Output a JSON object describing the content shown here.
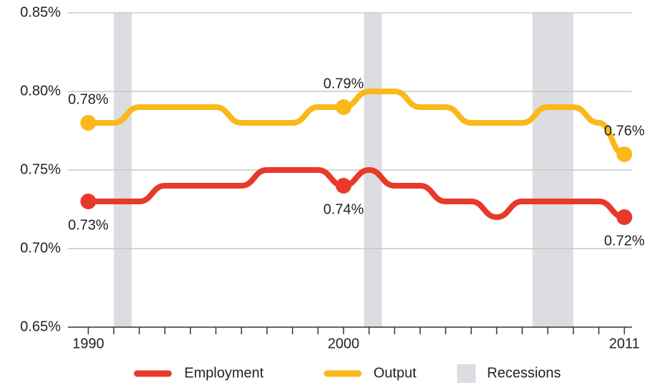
{
  "chart_data": {
    "type": "line",
    "x": [
      1990,
      1991,
      1992,
      1993,
      1994,
      1995,
      1996,
      1997,
      1998,
      1999,
      2000,
      2001,
      2002,
      2003,
      2004,
      2005,
      2006,
      2007,
      2008,
      2009,
      2010,
      2011
    ],
    "series": [
      {
        "name": "Employment",
        "color": "#e8392a",
        "values": [
          0.73,
          0.73,
          0.73,
          0.74,
          0.74,
          0.74,
          0.74,
          0.75,
          0.75,
          0.75,
          0.74,
          0.75,
          0.74,
          0.74,
          0.73,
          0.73,
          0.72,
          0.73,
          0.73,
          0.73,
          0.73,
          0.72
        ],
        "value_labels": [
          "0.73%",
          null,
          null,
          null,
          null,
          null,
          null,
          null,
          null,
          null,
          "0.74%",
          null,
          null,
          null,
          null,
          null,
          null,
          null,
          null,
          null,
          null,
          "0.72%"
        ]
      },
      {
        "name": "Output",
        "color": "#fbb81b",
        "values": [
          0.78,
          0.78,
          0.79,
          0.79,
          0.79,
          0.79,
          0.78,
          0.78,
          0.78,
          0.79,
          0.79,
          0.8,
          0.8,
          0.79,
          0.79,
          0.78,
          0.78,
          0.78,
          0.79,
          0.79,
          0.78,
          0.76
        ],
        "value_labels": [
          "0.78%",
          null,
          null,
          null,
          null,
          null,
          null,
          null,
          null,
          null,
          "0.79%",
          null,
          null,
          null,
          null,
          null,
          null,
          null,
          null,
          null,
          null,
          "0.76%"
        ]
      }
    ],
    "recessions": {
      "name": "Recessions",
      "color": "#dcdde0",
      "spans": [
        [
          1991.0,
          1991.7
        ],
        [
          2000.8,
          2001.5
        ],
        [
          2007.4,
          2009.0
        ]
      ]
    },
    "xlim": [
      1989.2,
      2011.3
    ],
    "xticks": [
      1990,
      2000,
      2011
    ],
    "xminor": [
      1991,
      1992,
      1993,
      1994,
      1995,
      1996,
      1997,
      1998,
      1999,
      2001,
      2002,
      2003,
      2004,
      2005,
      2006,
      2007,
      2008,
      2009,
      2010
    ],
    "ylim": [
      0.65,
      0.85
    ],
    "yticks": [
      {
        "value": 0.65,
        "label": "0.65%"
      },
      {
        "value": 0.7,
        "label": "0.70%"
      },
      {
        "value": 0.75,
        "label": "0.75%"
      },
      {
        "value": 0.8,
        "label": "0.80%"
      },
      {
        "value": 0.85,
        "label": "0.85%"
      }
    ],
    "grid": true
  }
}
